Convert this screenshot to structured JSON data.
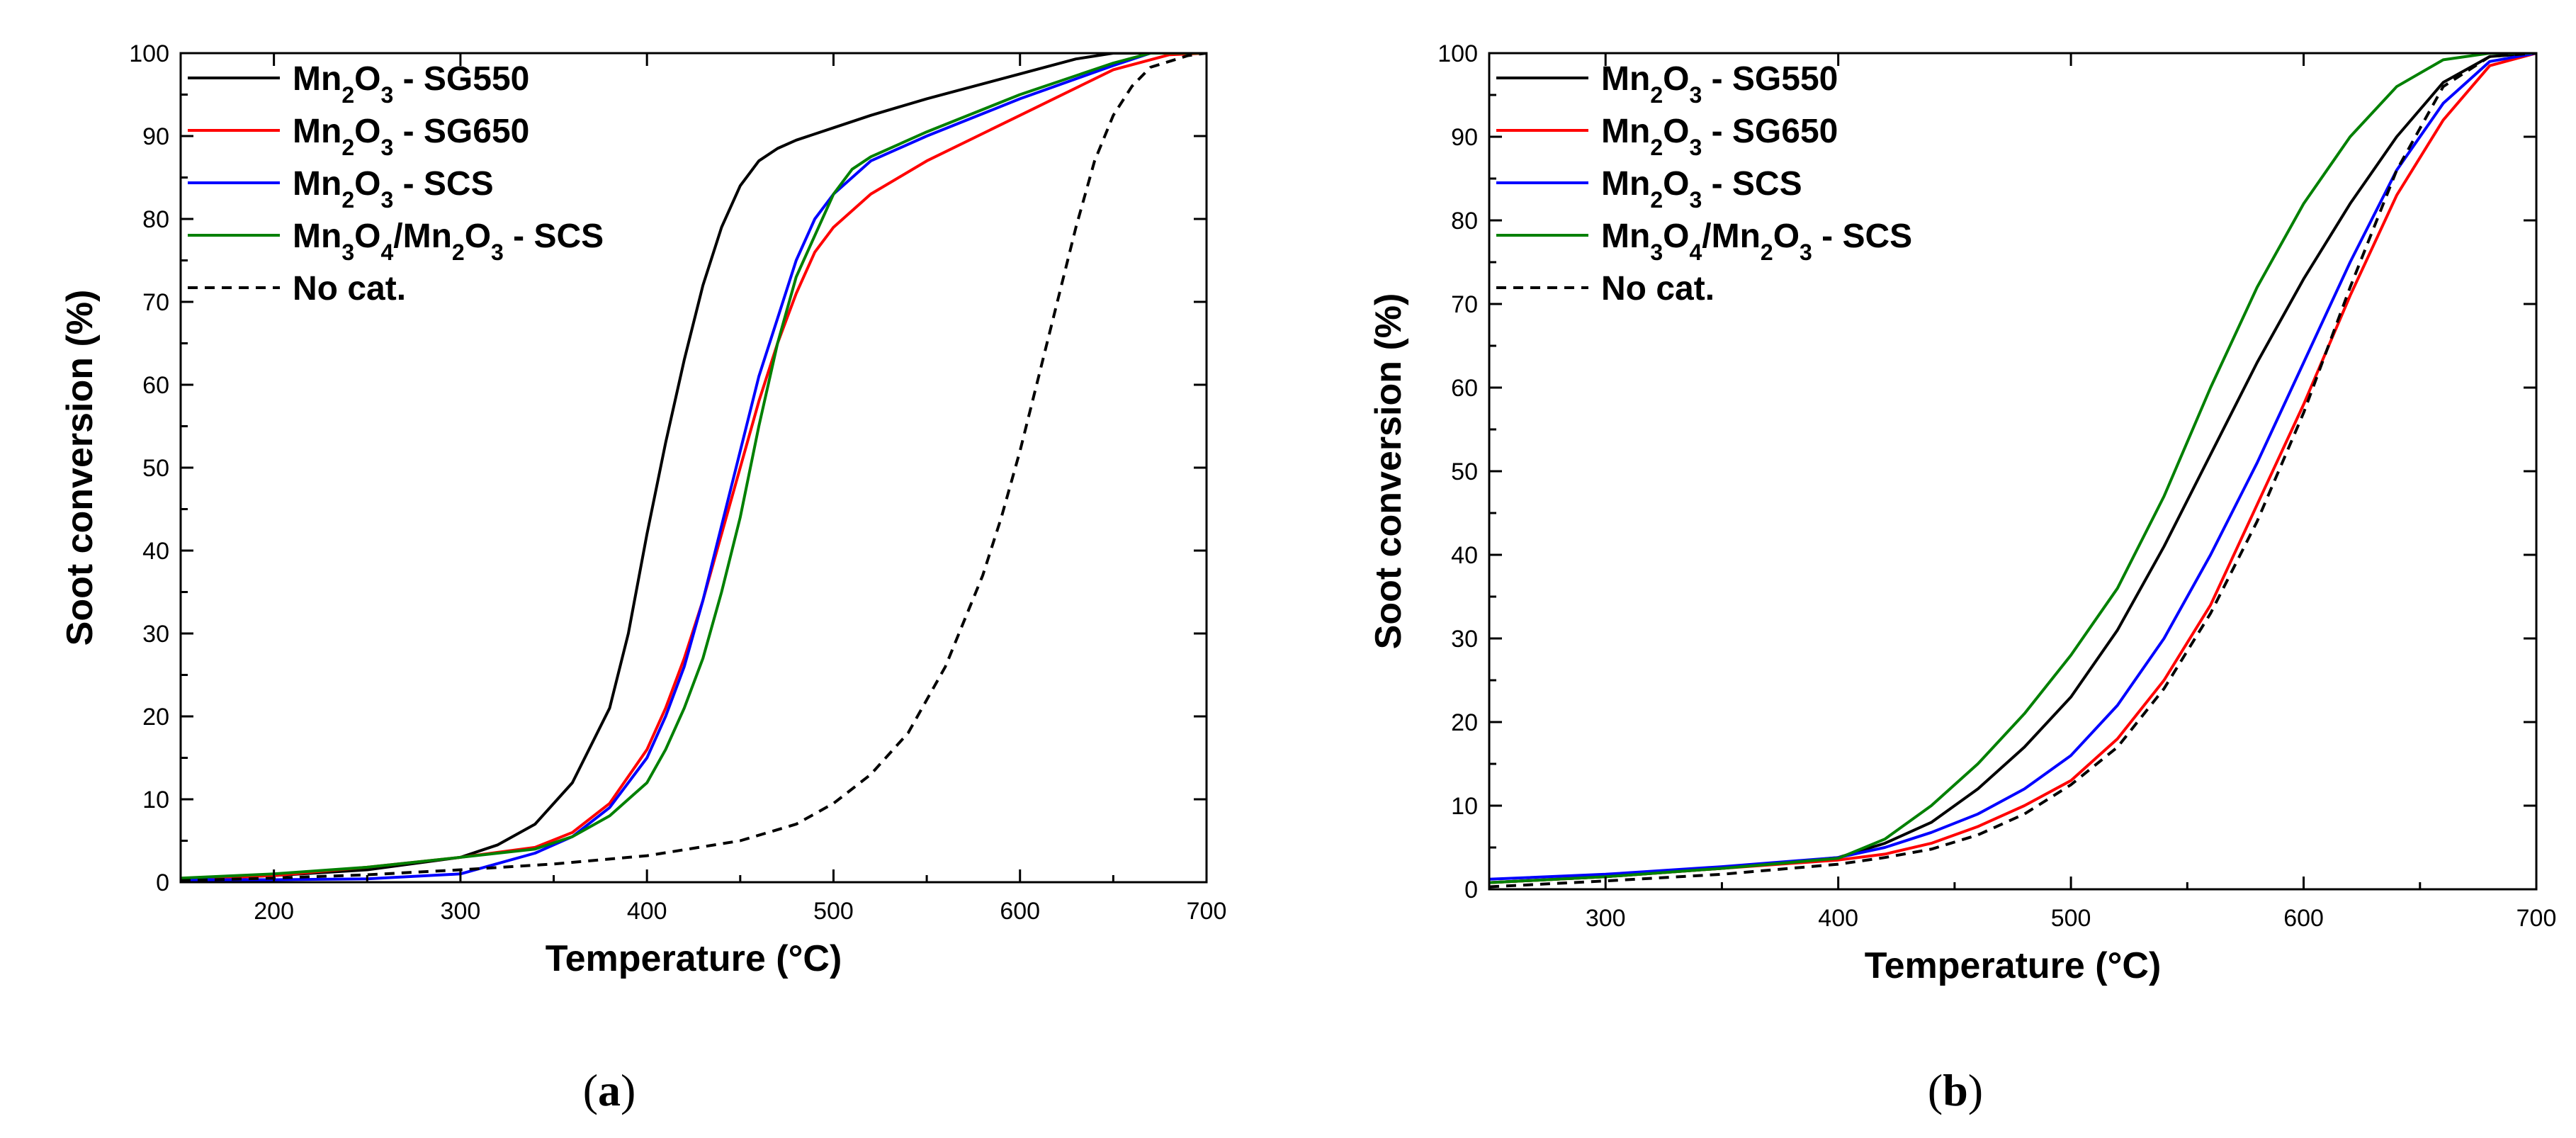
{
  "chart_data": [
    {
      "id": "a",
      "caption": {
        "open": "(",
        "letter": "a",
        "close": ")"
      },
      "type": "line",
      "title": "",
      "xlabel": "Temperature (°C)",
      "ylabel": "Soot conversion (%)",
      "xlim": [
        150,
        700
      ],
      "ylim": [
        0,
        100
      ],
      "xticks": [
        200,
        300,
        400,
        500,
        600,
        700
      ],
      "yticks": [
        0,
        10,
        20,
        30,
        40,
        50,
        60,
        70,
        80,
        90,
        100
      ],
      "grid": false,
      "legend_position": "top-left",
      "series": [
        {
          "name": "Mn2O3 - SG550",
          "label": {
            "base": "Mn",
            "sub1": "2",
            "mid": "O",
            "sub2": "3",
            "rest": " - SG550"
          },
          "color": "#000000",
          "dash": "solid",
          "x": [
            150,
            200,
            250,
            300,
            320,
            340,
            360,
            380,
            390,
            400,
            410,
            420,
            430,
            440,
            450,
            460,
            470,
            480,
            500,
            520,
            550,
            600,
            630,
            650,
            700
          ],
          "y": [
            0.3,
            0.8,
            1.5,
            3,
            4.5,
            7,
            12,
            21,
            30,
            42,
            53,
            63,
            72,
            79,
            84,
            87,
            88.5,
            89.5,
            91,
            92.5,
            94.5,
            97.5,
            99.3,
            100,
            100
          ]
        },
        {
          "name": "Mn2O3 - SG650",
          "label": {
            "base": "Mn",
            "sub1": "2",
            "mid": "O",
            "sub2": "3",
            "rest": " - SG650"
          },
          "color": "#ff0000",
          "dash": "solid",
          "x": [
            150,
            200,
            250,
            300,
            340,
            360,
            380,
            400,
            410,
            420,
            430,
            440,
            450,
            460,
            470,
            480,
            490,
            500,
            520,
            550,
            600,
            650,
            680,
            700
          ],
          "y": [
            0.3,
            0.8,
            1.8,
            3,
            4.2,
            6,
            9.5,
            16,
            21,
            27,
            34,
            42,
            50,
            58,
            65,
            71,
            76,
            79,
            83,
            87,
            92.5,
            98,
            99.8,
            100
          ]
        },
        {
          "name": "Mn2O3 - SCS",
          "label": {
            "base": "Mn",
            "sub1": "2",
            "mid": "O",
            "sub2": "3",
            "rest": " - SCS"
          },
          "color": "#0000ff",
          "dash": "solid",
          "x": [
            150,
            200,
            250,
            300,
            340,
            360,
            380,
            400,
            410,
            420,
            430,
            440,
            450,
            460,
            470,
            480,
            490,
            500,
            510,
            520,
            550,
            600,
            650,
            670,
            700
          ],
          "y": [
            0.3,
            0.3,
            0.4,
            1,
            3.5,
            5.5,
            9,
            15,
            20,
            26,
            34,
            43,
            52,
            61,
            68,
            75,
            80,
            83,
            85,
            87,
            90,
            94.5,
            98.5,
            100,
            100
          ]
        },
        {
          "name": "Mn3O4/Mn2O3 - SCS",
          "label": {
            "base": "Mn",
            "sub1": "3",
            "mid": "O",
            "sub2": "4",
            "rest": "/Mn",
            "sub3": "2",
            "mid2": "O",
            "sub4": "3",
            "rest2": " - SCS"
          },
          "color": "#008000",
          "dash": "solid",
          "x": [
            150,
            200,
            250,
            300,
            340,
            360,
            380,
            400,
            410,
            420,
            430,
            440,
            450,
            460,
            470,
            480,
            490,
            500,
            510,
            520,
            550,
            600,
            650,
            670,
            700
          ],
          "y": [
            0.5,
            1,
            1.8,
            3,
            4,
            5.5,
            8,
            12,
            16,
            21,
            27,
            35,
            44,
            55,
            65,
            73,
            78,
            83,
            86,
            87.5,
            90.5,
            95,
            98.8,
            100,
            100
          ]
        },
        {
          "name": "No cat.",
          "label": {
            "base": "No cat."
          },
          "color": "#000000",
          "dash": "dashed",
          "x": [
            150,
            200,
            250,
            300,
            350,
            400,
            450,
            480,
            500,
            520,
            540,
            560,
            580,
            590,
            600,
            610,
            620,
            630,
            640,
            650,
            660,
            670,
            690,
            700
          ],
          "y": [
            0.2,
            0.5,
            0.9,
            1.5,
            2.2,
            3.2,
            5,
            7,
            9.5,
            13,
            18,
            26,
            37,
            44,
            52,
            61,
            70,
            79,
            87,
            92.5,
            96,
            98.3,
            99.7,
            100
          ]
        }
      ]
    },
    {
      "id": "b",
      "caption": {
        "open": "(",
        "letter": "b",
        "close": ")"
      },
      "type": "line",
      "title": "",
      "xlabel": "Temperature (°C)",
      "ylabel": "Soot conversion (%)",
      "xlim": [
        250,
        700
      ],
      "ylim": [
        0,
        100
      ],
      "xticks": [
        300,
        400,
        500,
        600,
        700
      ],
      "yticks": [
        0,
        10,
        20,
        30,
        40,
        50,
        60,
        70,
        80,
        90,
        100
      ],
      "grid": false,
      "legend_position": "top-left",
      "series": [
        {
          "name": "Mn2O3 - SG550",
          "label": {
            "base": "Mn",
            "sub1": "2",
            "mid": "O",
            "sub2": "3",
            "rest": " - SG550"
          },
          "color": "#000000",
          "dash": "solid",
          "x": [
            250,
            300,
            350,
            400,
            420,
            440,
            460,
            480,
            500,
            520,
            540,
            560,
            580,
            600,
            620,
            640,
            660,
            680,
            700
          ],
          "y": [
            0.8,
            1.5,
            2.5,
            3.8,
            5.5,
            8,
            12,
            17,
            23,
            31,
            41,
            52,
            63,
            73,
            82,
            90,
            96.5,
            99.6,
            100
          ]
        },
        {
          "name": "Mn2O3 - SG650",
          "label": {
            "base": "Mn",
            "sub1": "2",
            "mid": "O",
            "sub2": "3",
            "rest": " - SG650"
          },
          "color": "#ff0000",
          "dash": "solid",
          "x": [
            250,
            300,
            350,
            400,
            420,
            440,
            460,
            480,
            500,
            520,
            540,
            560,
            580,
            600,
            620,
            640,
            660,
            680,
            700
          ],
          "y": [
            0.8,
            1.5,
            2.5,
            3.5,
            4.2,
            5.5,
            7.5,
            10,
            13,
            18,
            25,
            34,
            46,
            58,
            71,
            83,
            92,
            98.5,
            100
          ]
        },
        {
          "name": "Mn2O3 - SCS",
          "label": {
            "base": "Mn",
            "sub1": "2",
            "mid": "O",
            "sub2": "3",
            "rest": " - SCS"
          },
          "color": "#0000ff",
          "dash": "solid",
          "x": [
            250,
            300,
            350,
            400,
            420,
            440,
            460,
            480,
            500,
            520,
            540,
            560,
            580,
            600,
            620,
            640,
            660,
            680,
            700
          ],
          "y": [
            1.2,
            1.8,
            2.7,
            3.8,
            5,
            6.8,
            9,
            12,
            16,
            22,
            30,
            40,
            51,
            63,
            75,
            86,
            94,
            99,
            100
          ]
        },
        {
          "name": "Mn3O4/Mn2O3 - SCS",
          "label": {
            "base": "Mn",
            "sub1": "3",
            "mid": "O",
            "sub2": "4",
            "rest": "/Mn",
            "sub3": "2",
            "mid2": "O",
            "sub4": "3",
            "rest2": " - SCS"
          },
          "color": "#008000",
          "dash": "solid",
          "x": [
            250,
            300,
            350,
            400,
            420,
            440,
            460,
            480,
            500,
            520,
            540,
            560,
            580,
            600,
            620,
            640,
            660,
            680,
            700
          ],
          "y": [
            0.8,
            1.5,
            2.5,
            3.7,
            6,
            10,
            15,
            21,
            28,
            36,
            47,
            60,
            72,
            82,
            90,
            96,
            99.2,
            100,
            100
          ]
        },
        {
          "name": "No cat.",
          "label": {
            "base": "No cat."
          },
          "color": "#000000",
          "dash": "dashed",
          "x": [
            250,
            300,
            350,
            400,
            420,
            440,
            460,
            480,
            500,
            520,
            540,
            560,
            580,
            600,
            620,
            640,
            660,
            680,
            700
          ],
          "y": [
            0.3,
            1,
            1.8,
            3,
            3.8,
            4.8,
            6.5,
            9,
            12.5,
            17,
            24,
            33,
            44,
            57,
            72,
            86,
            96,
            99.6,
            100
          ]
        }
      ]
    }
  ]
}
